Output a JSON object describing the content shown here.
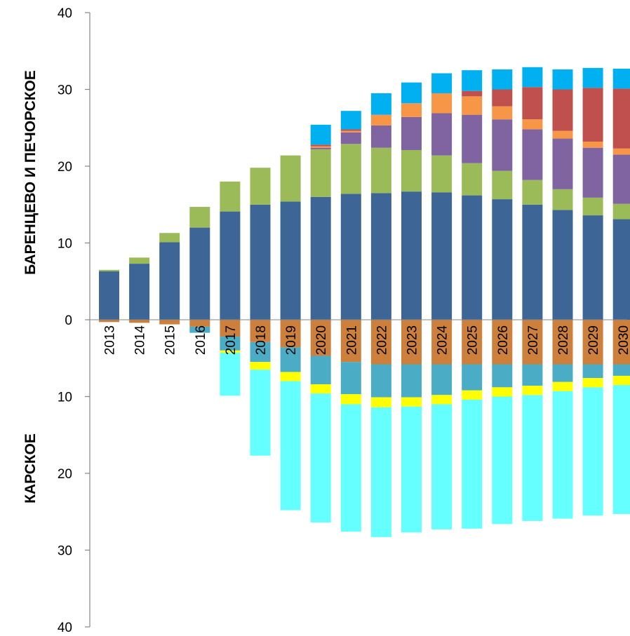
{
  "chart_data": {
    "type": "bar",
    "stacked": true,
    "diverging": true,
    "ylim": [
      -40,
      40
    ],
    "y_ticks": [
      40,
      30,
      20,
      10,
      0,
      10,
      20,
      30,
      40
    ],
    "ylabel_top": "БАРЕНЦЕВО И ПЕЧОРСКОЕ",
    "ylabel_bottom": "КАРСКОЕ",
    "grid": false,
    "categories": [
      "2013",
      "2014",
      "2015",
      "2016",
      "2017",
      "2018",
      "2019",
      "2020",
      "2021",
      "2022",
      "2023",
      "2024",
      "2025",
      "2026",
      "2027",
      "2028",
      "2029",
      "2030"
    ],
    "series_top": [
      {
        "color": "#3d6696",
        "values": [
          6.3,
          7.3,
          10.1,
          12.0,
          14.1,
          15.0,
          15.4,
          16.0,
          16.4,
          16.5,
          16.7,
          16.6,
          16.2,
          15.7,
          15.0,
          14.3,
          13.6,
          13.1
        ]
      },
      {
        "color": "#9bbb59",
        "values": [
          0.2,
          0.8,
          1.2,
          2.7,
          3.9,
          4.8,
          6.0,
          6.2,
          6.5,
          5.9,
          5.4,
          4.8,
          4.2,
          3.7,
          3.2,
          2.7,
          2.3,
          2.0
        ]
      },
      {
        "color": "#8064a2",
        "values": [
          0,
          0,
          0,
          0,
          0,
          0,
          0,
          0.2,
          1.5,
          2.9,
          4.3,
          5.5,
          6.3,
          6.7,
          6.6,
          6.6,
          6.5,
          6.4
        ]
      },
      {
        "color": "#f79646",
        "values": [
          0,
          0,
          0,
          0,
          0,
          0,
          0,
          0.2,
          0.2,
          1.4,
          1.8,
          2.6,
          2.4,
          1.7,
          1.3,
          1.0,
          0.8,
          0.8
        ]
      },
      {
        "color": "#c0504d",
        "values": [
          0,
          0,
          0,
          0,
          0,
          0,
          0,
          0.2,
          0.2,
          0,
          0,
          0,
          0.7,
          2.2,
          4.2,
          5.4,
          7.0,
          7.8
        ]
      },
      {
        "color": "#00b0f0",
        "values": [
          0,
          0,
          0,
          0,
          0,
          0,
          0,
          2.6,
          2.4,
          2.8,
          2.7,
          2.6,
          2.7,
          2.6,
          2.6,
          2.6,
          2.6,
          2.6
        ]
      }
    ],
    "series_bottom": [
      {
        "color": "#cd7f3c",
        "values": [
          0.3,
          0.4,
          0.6,
          0.9,
          2.2,
          2.9,
          3.6,
          4.7,
          5.5,
          5.8,
          5.8,
          5.8,
          5.8,
          5.8,
          5.8,
          5.8,
          5.8,
          5.8
        ]
      },
      {
        "color": "#4bacc6",
        "values": [
          0,
          0,
          0,
          0.8,
          1.8,
          2.6,
          3.2,
          3.7,
          4.2,
          4.3,
          4.3,
          4.0,
          3.4,
          3.0,
          2.8,
          2.3,
          1.8,
          1.5
        ]
      },
      {
        "color": "#ffff00",
        "values": [
          0,
          0,
          0,
          0,
          0.3,
          1.0,
          1.2,
          1.2,
          1.3,
          1.3,
          1.2,
          1.2,
          1.2,
          1.2,
          1.2,
          1.2,
          1.2,
          1.2
        ]
      },
      {
        "color": "#66ffff",
        "values": [
          0,
          0,
          0,
          0,
          5.6,
          11.2,
          16.8,
          16.8,
          16.6,
          16.9,
          16.4,
          16.3,
          16.8,
          16.6,
          16.4,
          16.6,
          16.7,
          16.8
        ]
      }
    ]
  }
}
